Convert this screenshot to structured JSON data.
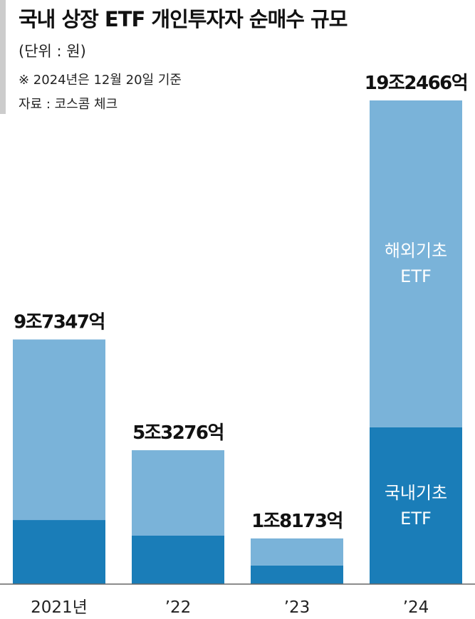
{
  "chart_data": {
    "type": "stacked-bar",
    "title": "국내 상장 ETF 개인투자자 순매수 규모",
    "subtitle": "(단위 : 원)",
    "note": "※ 2024년은 12월 20일 기준",
    "source": "자료 : 코스콤 체크",
    "categories": [
      "2021년",
      "’22",
      "’23",
      "’24"
    ],
    "series": [
      {
        "name": "국내기초 ETF",
        "color": "#1a7db8",
        "values": [
          25500,
          19280,
          7400,
          62370
        ]
      },
      {
        "name": "해외기초 ETF",
        "color": "#7ab3d9",
        "values": [
          71847,
          33996,
          10773,
          130096
        ]
      }
    ],
    "totals": [
      97347,
      53276,
      18173,
      192466
    ],
    "total_labels": [
      "9조7347억",
      "5조3276억",
      "1조8173억",
      "19조2466억"
    ]
  }
}
